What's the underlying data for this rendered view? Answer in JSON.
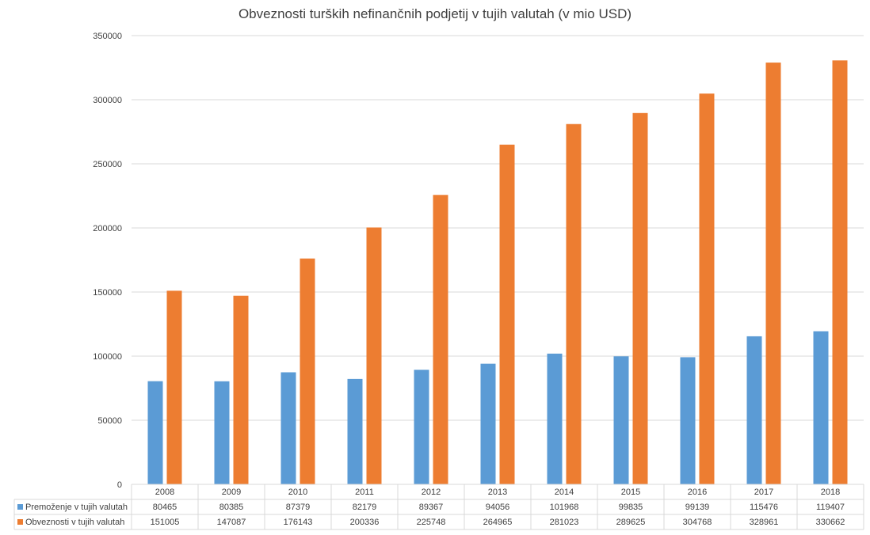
{
  "chart_data": {
    "type": "bar",
    "title": "Obveznosti turških nefinančnih podjetij v tujih valutah (v mio USD)",
    "categories": [
      "2008",
      "2009",
      "2010",
      "2011",
      "2012",
      "2013",
      "2014",
      "2015",
      "2016",
      "2017",
      "2018"
    ],
    "series": [
      {
        "name": "Premoženje v tujih valutah",
        "color": "#5b9bd5",
        "values": [
          80465,
          80385,
          87379,
          82179,
          89367,
          94056,
          101968,
          99835,
          99139,
          115476,
          119407
        ]
      },
      {
        "name": "Obveznosti v tujih valutah",
        "color": "#ed7d31",
        "values": [
          151005,
          147087,
          176143,
          200336,
          225748,
          264965,
          281023,
          289625,
          304768,
          328961,
          330662
        ]
      }
    ],
    "ylim": [
      0,
      350000
    ],
    "yticks": [
      0,
      50000,
      100000,
      150000,
      200000,
      250000,
      300000,
      350000
    ],
    "grid": true,
    "legend": "data-table"
  }
}
